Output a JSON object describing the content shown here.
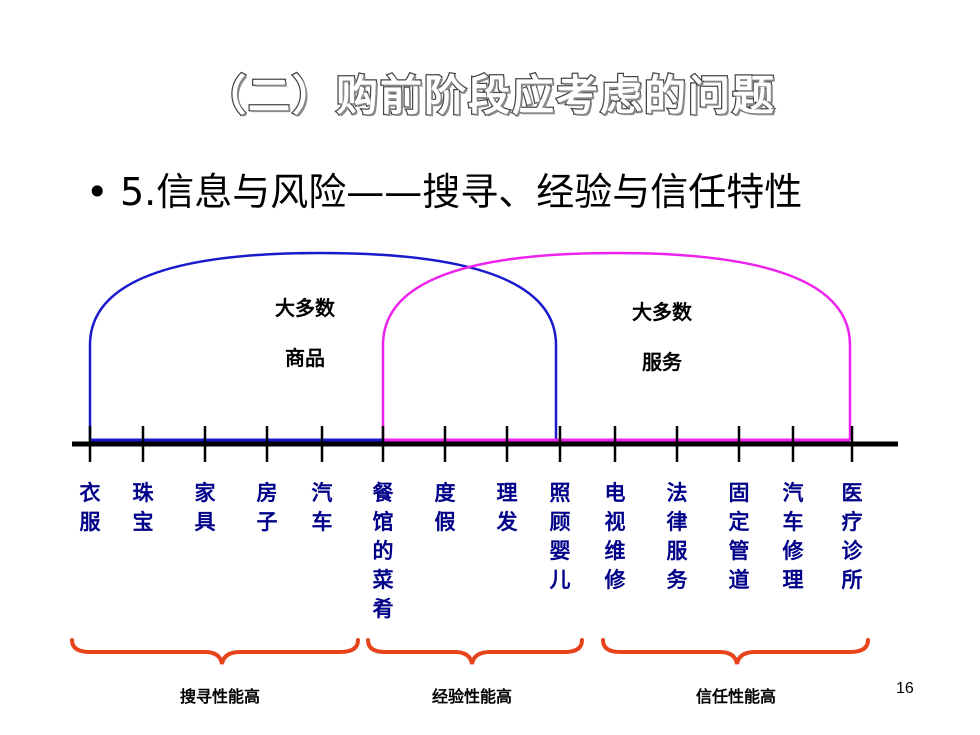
{
  "title": "（二）购前阶段应考虑的问题",
  "bullet": {
    "marker": "•",
    "text": "5.信息与风险——搜寻、经验与信任特性"
  },
  "arcs": {
    "goods": {
      "line1": "大多数",
      "line2": "商品",
      "color": "#1a1acc"
    },
    "services": {
      "line1": "大多数",
      "line2": "服务",
      "color": "#ee22ee"
    }
  },
  "items": [
    {
      "label": "衣服"
    },
    {
      "label": "珠宝"
    },
    {
      "label": "家具"
    },
    {
      "label": "房子"
    },
    {
      "label": "汽车"
    },
    {
      "label": "餐馆的菜肴"
    },
    {
      "label": "度假"
    },
    {
      "label": "理发"
    },
    {
      "label": "照顾婴儿"
    },
    {
      "label": "电视维修"
    },
    {
      "label": "法律服务"
    },
    {
      "label": "固定管道"
    },
    {
      "label": "汽车修理"
    },
    {
      "label": "医疗诊所"
    }
  ],
  "groups": [
    {
      "label": "搜寻性能高"
    },
    {
      "label": "经验性能高"
    },
    {
      "label": "信任性能高"
    }
  ],
  "colors": {
    "brace": "#e8441c",
    "item_text": "#000088",
    "axis": "#000000"
  },
  "page_number": "16"
}
